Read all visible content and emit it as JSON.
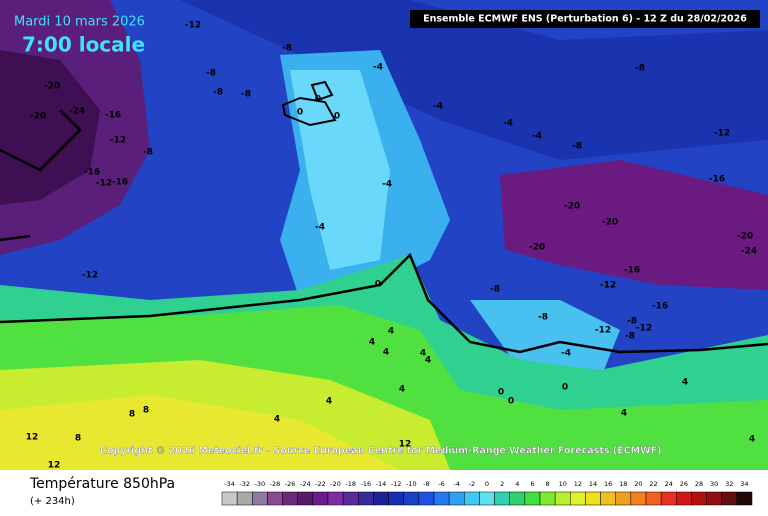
{
  "header": {
    "date": "Mardi 10 mars 2026",
    "time": "7:00 locale",
    "model": "Ensemble ECMWF ENS  (Perturbation 6)  -  12 Z du 28/02/2026"
  },
  "copyright": "Copyright © 2026 Meteociel.fr - Source European Centre for Medium-Range Weather Forecasts (ECMWF)",
  "footer": {
    "title": "Température 850hPa",
    "lead": "(+ 234h)"
  },
  "contour_labels": [
    "-12",
    "-8",
    "-8",
    "-8",
    "-8",
    "-4",
    "-8",
    "-20",
    "-24",
    "-20",
    "-16",
    "-12",
    "-8",
    "0",
    "0",
    "0",
    "-4",
    "-4",
    "-4",
    "-8",
    "-12",
    "-16",
    "-12",
    "-16",
    "-4",
    "-16",
    "-20",
    "-20",
    "-20",
    "-20",
    "-24",
    "-4",
    "-12",
    "-16",
    "-12",
    "-8",
    "0",
    "-16",
    "-8",
    "-12",
    "-8",
    "-12",
    "-8",
    "4",
    "4",
    "4",
    "4",
    "4",
    "-4",
    "4",
    "0",
    "0",
    "0",
    "4",
    "4",
    "8",
    "8",
    "4",
    "4",
    "12",
    "8",
    "4",
    "12",
    "12"
  ],
  "colorbar": {
    "ticks": [
      -34,
      -32,
      -30,
      -28,
      -26,
      -24,
      -22,
      -20,
      -18,
      -16,
      -14,
      -12,
      -10,
      -8,
      -6,
      -4,
      -2,
      0,
      2,
      4,
      6,
      8,
      10,
      12,
      14,
      16,
      18,
      20,
      22,
      24,
      26,
      28,
      30,
      32,
      34
    ],
    "colors": [
      "#c8c8c8",
      "#a8a8a8",
      "#8c7aa0",
      "#8a4a90",
      "#6a2a78",
      "#581a66",
      "#6e1a8a",
      "#7e2ea0",
      "#5a2a9a",
      "#3a2a9a",
      "#20209a",
      "#1830b0",
      "#1a40c8",
      "#2050e0",
      "#2878f0",
      "#30a0f0",
      "#40c8f0",
      "#60e0f0",
      "#30d0b0",
      "#30d070",
      "#40e040",
      "#80ea30",
      "#b8f030",
      "#e0f030",
      "#f0e020",
      "#f0c020",
      "#f0a020",
      "#f08020",
      "#f06020",
      "#e83020",
      "#d01818",
      "#b01010",
      "#901010",
      "#601010",
      "#200808"
    ]
  }
}
